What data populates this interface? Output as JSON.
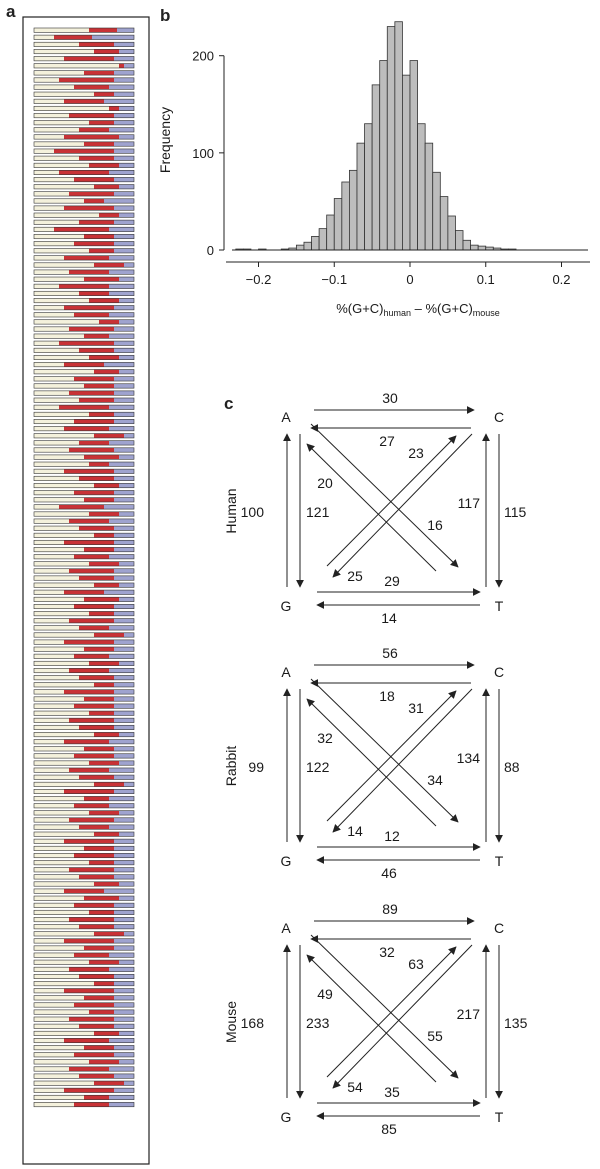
{
  "panels": {
    "a": {
      "label": "a"
    },
    "b": {
      "label": "b"
    },
    "c": {
      "label": "c"
    }
  },
  "panel_a": {
    "colors": {
      "cream": "#f4f1dc",
      "red": "#c83236",
      "blue": "#9fa3cf",
      "outline": "#333333"
    },
    "bars": [
      [
        0.55,
        0.28,
        0.17
      ],
      [
        0.2,
        0.38,
        0.42
      ],
      [
        0.45,
        0.35,
        0.2
      ],
      [
        0.6,
        0.25,
        0.15
      ],
      [
        0.3,
        0.5,
        0.2
      ],
      [
        0.85,
        0.05,
        0.1
      ],
      [
        0.5,
        0.3,
        0.2
      ],
      [
        0.25,
        0.55,
        0.2
      ],
      [
        0.4,
        0.35,
        0.25
      ],
      [
        0.6,
        0.2,
        0.2
      ],
      [
        0.3,
        0.4,
        0.3
      ],
      [
        0.75,
        0.1,
        0.15
      ],
      [
        0.35,
        0.45,
        0.2
      ],
      [
        0.55,
        0.25,
        0.2
      ],
      [
        0.45,
        0.3,
        0.25
      ],
      [
        0.3,
        0.55,
        0.15
      ],
      [
        0.5,
        0.3,
        0.2
      ],
      [
        0.2,
        0.6,
        0.2
      ],
      [
        0.45,
        0.35,
        0.2
      ],
      [
        0.55,
        0.3,
        0.15
      ],
      [
        0.25,
        0.5,
        0.25
      ],
      [
        0.4,
        0.4,
        0.2
      ],
      [
        0.6,
        0.25,
        0.15
      ],
      [
        0.35,
        0.45,
        0.2
      ],
      [
        0.5,
        0.2,
        0.3
      ],
      [
        0.3,
        0.5,
        0.2
      ],
      [
        0.65,
        0.2,
        0.15
      ],
      [
        0.45,
        0.35,
        0.2
      ],
      [
        0.2,
        0.55,
        0.25
      ],
      [
        0.5,
        0.3,
        0.2
      ],
      [
        0.4,
        0.4,
        0.2
      ],
      [
        0.55,
        0.25,
        0.2
      ],
      [
        0.3,
        0.45,
        0.25
      ],
      [
        0.6,
        0.3,
        0.1
      ],
      [
        0.35,
        0.4,
        0.25
      ],
      [
        0.5,
        0.35,
        0.15
      ],
      [
        0.25,
        0.5,
        0.25
      ],
      [
        0.45,
        0.3,
        0.25
      ],
      [
        0.55,
        0.3,
        0.15
      ],
      [
        0.3,
        0.5,
        0.2
      ],
      [
        0.4,
        0.35,
        0.25
      ],
      [
        0.65,
        0.2,
        0.15
      ],
      [
        0.35,
        0.45,
        0.2
      ],
      [
        0.5,
        0.25,
        0.25
      ],
      [
        0.25,
        0.55,
        0.2
      ],
      [
        0.45,
        0.35,
        0.2
      ],
      [
        0.55,
        0.3,
        0.15
      ],
      [
        0.3,
        0.4,
        0.3
      ],
      [
        0.6,
        0.25,
        0.15
      ],
      [
        0.4,
        0.4,
        0.2
      ],
      [
        0.5,
        0.3,
        0.2
      ],
      [
        0.35,
        0.45,
        0.2
      ],
      [
        0.45,
        0.35,
        0.2
      ],
      [
        0.25,
        0.5,
        0.25
      ],
      [
        0.55,
        0.25,
        0.2
      ],
      [
        0.4,
        0.4,
        0.2
      ],
      [
        0.3,
        0.45,
        0.25
      ],
      [
        0.6,
        0.3,
        0.1
      ],
      [
        0.45,
        0.3,
        0.25
      ],
      [
        0.35,
        0.45,
        0.2
      ],
      [
        0.5,
        0.35,
        0.15
      ],
      [
        0.55,
        0.2,
        0.25
      ],
      [
        0.3,
        0.5,
        0.2
      ],
      [
        0.45,
        0.35,
        0.2
      ],
      [
        0.6,
        0.25,
        0.15
      ],
      [
        0.4,
        0.4,
        0.2
      ],
      [
        0.5,
        0.3,
        0.2
      ],
      [
        0.25,
        0.45,
        0.3
      ],
      [
        0.55,
        0.3,
        0.15
      ],
      [
        0.35,
        0.4,
        0.25
      ],
      [
        0.45,
        0.35,
        0.2
      ],
      [
        0.6,
        0.2,
        0.2
      ],
      [
        0.3,
        0.5,
        0.2
      ],
      [
        0.5,
        0.3,
        0.2
      ],
      [
        0.4,
        0.35,
        0.25
      ],
      [
        0.55,
        0.3,
        0.15
      ],
      [
        0.35,
        0.45,
        0.2
      ],
      [
        0.45,
        0.35,
        0.2
      ],
      [
        0.6,
        0.25,
        0.15
      ],
      [
        0.3,
        0.4,
        0.3
      ],
      [
        0.5,
        0.35,
        0.15
      ],
      [
        0.4,
        0.4,
        0.2
      ],
      [
        0.55,
        0.25,
        0.2
      ],
      [
        0.35,
        0.45,
        0.2
      ],
      [
        0.45,
        0.3,
        0.25
      ],
      [
        0.6,
        0.3,
        0.1
      ],
      [
        0.3,
        0.5,
        0.2
      ],
      [
        0.5,
        0.3,
        0.2
      ],
      [
        0.4,
        0.35,
        0.25
      ],
      [
        0.55,
        0.3,
        0.15
      ],
      [
        0.35,
        0.4,
        0.25
      ],
      [
        0.45,
        0.35,
        0.2
      ],
      [
        0.6,
        0.2,
        0.2
      ],
      [
        0.3,
        0.5,
        0.2
      ],
      [
        0.5,
        0.3,
        0.2
      ],
      [
        0.4,
        0.4,
        0.2
      ],
      [
        0.55,
        0.25,
        0.2
      ],
      [
        0.35,
        0.45,
        0.2
      ],
      [
        0.45,
        0.35,
        0.2
      ],
      [
        0.6,
        0.25,
        0.15
      ],
      [
        0.3,
        0.45,
        0.25
      ],
      [
        0.5,
        0.3,
        0.2
      ],
      [
        0.4,
        0.4,
        0.2
      ],
      [
        0.55,
        0.3,
        0.15
      ],
      [
        0.35,
        0.4,
        0.25
      ],
      [
        0.45,
        0.35,
        0.2
      ],
      [
        0.6,
        0.3,
        0.1
      ],
      [
        0.3,
        0.5,
        0.2
      ],
      [
        0.5,
        0.25,
        0.25
      ],
      [
        0.4,
        0.35,
        0.25
      ],
      [
        0.55,
        0.3,
        0.15
      ],
      [
        0.35,
        0.45,
        0.2
      ],
      [
        0.45,
        0.3,
        0.25
      ],
      [
        0.6,
        0.25,
        0.15
      ],
      [
        0.3,
        0.5,
        0.2
      ],
      [
        0.5,
        0.3,
        0.2
      ],
      [
        0.4,
        0.4,
        0.2
      ],
      [
        0.55,
        0.25,
        0.2
      ],
      [
        0.35,
        0.45,
        0.2
      ],
      [
        0.45,
        0.35,
        0.2
      ],
      [
        0.6,
        0.25,
        0.15
      ],
      [
        0.3,
        0.4,
        0.3
      ],
      [
        0.5,
        0.35,
        0.15
      ],
      [
        0.4,
        0.4,
        0.2
      ],
      [
        0.55,
        0.25,
        0.2
      ],
      [
        0.35,
        0.45,
        0.2
      ],
      [
        0.45,
        0.35,
        0.2
      ],
      [
        0.6,
        0.3,
        0.1
      ],
      [
        0.3,
        0.5,
        0.2
      ],
      [
        0.5,
        0.3,
        0.2
      ],
      [
        0.4,
        0.35,
        0.25
      ],
      [
        0.55,
        0.3,
        0.15
      ],
      [
        0.35,
        0.4,
        0.25
      ],
      [
        0.45,
        0.35,
        0.2
      ],
      [
        0.6,
        0.2,
        0.2
      ],
      [
        0.3,
        0.5,
        0.2
      ],
      [
        0.5,
        0.3,
        0.2
      ],
      [
        0.4,
        0.4,
        0.2
      ],
      [
        0.55,
        0.25,
        0.2
      ],
      [
        0.35,
        0.45,
        0.2
      ],
      [
        0.45,
        0.35,
        0.2
      ],
      [
        0.6,
        0.25,
        0.15
      ],
      [
        0.3,
        0.45,
        0.25
      ],
      [
        0.5,
        0.3,
        0.2
      ],
      [
        0.4,
        0.4,
        0.2
      ],
      [
        0.55,
        0.3,
        0.15
      ],
      [
        0.35,
        0.4,
        0.25
      ],
      [
        0.45,
        0.35,
        0.2
      ],
      [
        0.6,
        0.3,
        0.1
      ],
      [
        0.3,
        0.5,
        0.2
      ],
      [
        0.5,
        0.25,
        0.25
      ],
      [
        0.4,
        0.35,
        0.25
      ]
    ]
  },
  "chart_data": {
    "type": "bar",
    "xlabel_main": "%(G+C)",
    "xlabel_sub1": "human",
    "xlabel_minus": " – %(G+C)",
    "xlabel_sub2": "mouse",
    "ylabel": "Frequency",
    "xlim": [
      -0.235,
      0.235
    ],
    "ylim": [
      0,
      245
    ],
    "xticks": [
      "−0.2",
      "−0.1",
      "0",
      "0.1",
      "0.2"
    ],
    "xtick_values": [
      -0.2,
      -0.1,
      0,
      0.1,
      0.2
    ],
    "yticks": [
      "0",
      "100",
      "200"
    ],
    "ytick_values": [
      0,
      100,
      200
    ],
    "bin_width": 0.01,
    "bins_start": [
      -0.23,
      -0.22,
      -0.21,
      -0.2,
      -0.19,
      -0.18,
      -0.17,
      -0.16,
      -0.15,
      -0.14,
      -0.13,
      -0.12,
      -0.11,
      -0.1,
      -0.09,
      -0.08,
      -0.07,
      -0.06,
      -0.05,
      -0.04,
      -0.03,
      -0.02,
      -0.01,
      0,
      0.01,
      0.02,
      0.03,
      0.04,
      0.05,
      0.06,
      0.07,
      0.08,
      0.09,
      0.1,
      0.11,
      0.12,
      0.13,
      0.14,
      0.15,
      0.16,
      0.17,
      0.18,
      0.19,
      0.2,
      0.21,
      0.22
    ],
    "values": [
      1,
      1,
      0,
      1,
      0,
      0,
      1,
      2,
      5,
      8,
      14,
      22,
      36,
      53,
      70,
      82,
      110,
      130,
      170,
      195,
      230,
      235,
      180,
      195,
      130,
      110,
      80,
      55,
      35,
      20,
      10,
      5,
      4,
      3,
      2,
      1,
      1,
      0,
      0,
      0,
      0,
      0,
      0,
      0,
      0,
      0
    ],
    "bar_color": "#bdbdbd"
  },
  "substitution": {
    "diagrams": [
      {
        "species": "Human",
        "AC": "30",
        "CA": "27",
        "GT": "29",
        "TG": "14",
        "AG": "100",
        "GA": "121",
        "CT": "115",
        "TC": "117",
        "AT": "16",
        "TA": "20",
        "CG": "25",
        "GC": "23"
      },
      {
        "species": "Rabbit",
        "AC": "56",
        "CA": "18",
        "GT": "12",
        "TG": "46",
        "AG": "99",
        "GA": "122",
        "CT": "88",
        "TC": "134",
        "AT": "34",
        "TA": "32",
        "CG": "14",
        "GC": "31"
      },
      {
        "species": "Mouse",
        "AC": "89",
        "CA": "32",
        "GT": "35",
        "TG": "85",
        "AG": "168",
        "GA": "233",
        "CT": "135",
        "TC": "217",
        "AT": "55",
        "TA": "49",
        "CG": "54",
        "GC": "63"
      }
    ],
    "bases": {
      "A": "A",
      "C": "C",
      "G": "G",
      "T": "T"
    }
  }
}
